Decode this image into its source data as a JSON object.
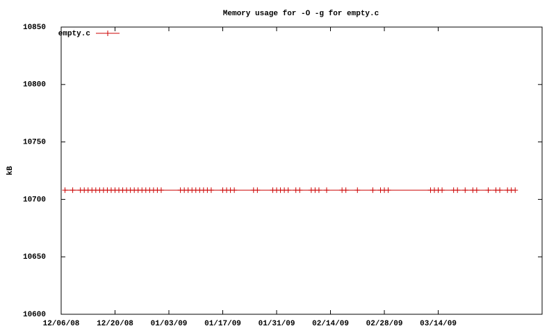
{
  "chart_data": {
    "type": "line",
    "title": "Memory usage for -O -g for empty.c",
    "ylabel": "kB",
    "x": [
      "12/07/08",
      "12/09/08",
      "12/11/08",
      "12/12/08",
      "12/13/08",
      "12/14/08",
      "12/15/08",
      "12/16/08",
      "12/17/08",
      "12/18/08",
      "12/19/08",
      "12/20/08",
      "12/21/08",
      "12/22/08",
      "12/23/08",
      "12/24/08",
      "12/25/08",
      "12/26/08",
      "12/27/08",
      "12/28/08",
      "12/29/08",
      "12/30/08",
      "12/31/08",
      "01/01/09",
      "01/06/09",
      "01/07/09",
      "01/08/09",
      "01/09/09",
      "01/10/09",
      "01/11/09",
      "01/12/09",
      "01/13/09",
      "01/14/09",
      "01/17/09",
      "01/18/09",
      "01/19/09",
      "01/20/09",
      "01/25/09",
      "01/26/09",
      "01/30/09",
      "01/31/09",
      "02/01/09",
      "02/02/09",
      "02/03/09",
      "02/05/09",
      "02/06/09",
      "02/09/09",
      "02/10/09",
      "02/11/09",
      "02/13/09",
      "02/17/09",
      "02/18/09",
      "02/21/09",
      "02/25/09",
      "02/27/09",
      "02/28/09",
      "03/01/09",
      "03/12/09",
      "03/13/09",
      "03/14/09",
      "03/15/09",
      "03/18/09",
      "03/19/09",
      "03/21/09",
      "03/23/09",
      "03/24/09",
      "03/27/09",
      "03/29/09",
      "03/30/09",
      "04/01/09",
      "04/02/09",
      "04/03/09"
    ],
    "series": [
      {
        "name": "empty.c",
        "color": "#cc0000",
        "values": [
          10708,
          10708,
          10708,
          10708,
          10708,
          10708,
          10708,
          10708,
          10708,
          10708,
          10708,
          10708,
          10708,
          10708,
          10708,
          10708,
          10708,
          10708,
          10708,
          10708,
          10708,
          10708,
          10708,
          10708,
          10708,
          10708,
          10708,
          10708,
          10708,
          10708,
          10708,
          10708,
          10708,
          10708,
          10708,
          10708,
          10708,
          10708,
          10708,
          10708,
          10708,
          10708,
          10708,
          10708,
          10708,
          10708,
          10708,
          10708,
          10708,
          10708,
          10708,
          10708,
          10708,
          10708,
          10708,
          10708,
          10708,
          10708,
          10708,
          10708,
          10708,
          10708,
          10708,
          10708,
          10708,
          10708,
          10708,
          10708,
          10708,
          10708,
          10708,
          10708
        ]
      }
    ],
    "xlim": [
      "12/06/08",
      "04/10/09"
    ],
    "xticks": [
      "12/06/08",
      "12/20/08",
      "01/03/09",
      "01/17/09",
      "01/31/09",
      "02/14/09",
      "02/28/09",
      "03/14/09"
    ],
    "ylim": [
      10600,
      10850
    ],
    "yticks": [
      10600,
      10650,
      10700,
      10750,
      10800,
      10850
    ],
    "legend": "top-left"
  }
}
